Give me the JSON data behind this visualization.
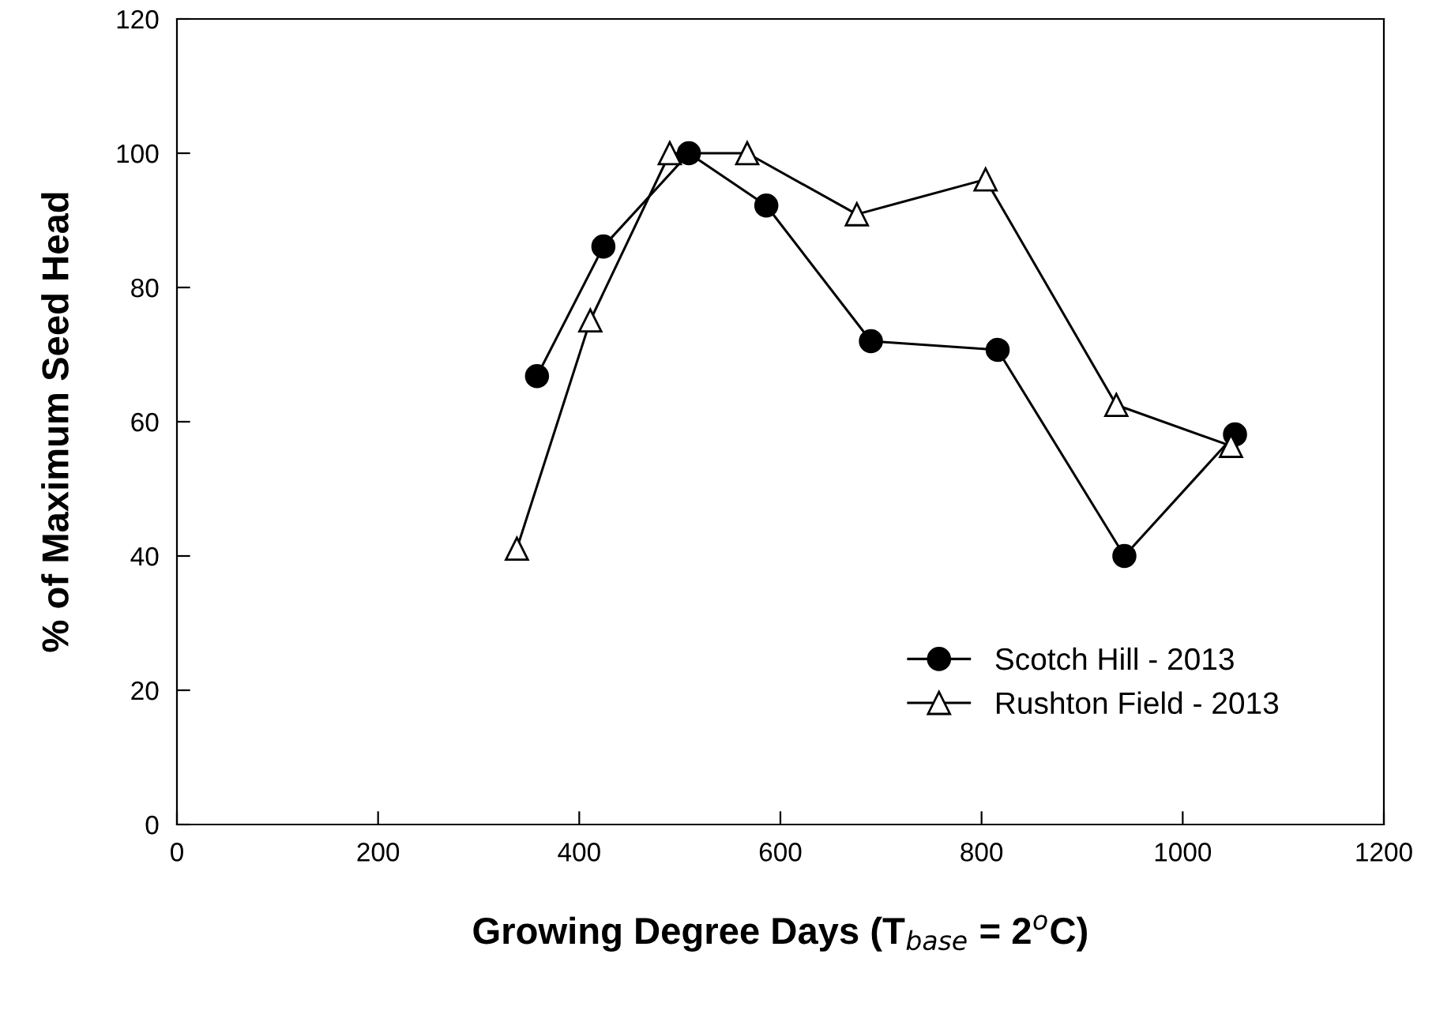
{
  "chart_data": {
    "type": "line",
    "xlabel": "Growing Degree Days (T$_{base}$ = 2$^{o}$C)",
    "ylabel": "% of Maximum Seed Head",
    "xlim": [
      0,
      1200
    ],
    "xticks": [
      0,
      200,
      400,
      600,
      800,
      1000,
      1200
    ],
    "ylim": [
      0,
      120
    ],
    "yticks": [
      0,
      20,
      40,
      60,
      80,
      100,
      120
    ],
    "grid": false,
    "legend": "bottom right",
    "series": [
      {
        "name": "Scotch Hill - 2013",
        "color": "#000000",
        "marker": "circle",
        "x": [
          358,
          424,
          509,
          586,
          690,
          816,
          942,
          1052
        ],
        "values": [
          66.8,
          86.1,
          100,
          92.2,
          72.0,
          70.7,
          40,
          58.1
        ]
      },
      {
        "name": "Rushton Field - 2013",
        "color": "#000000",
        "marker": "triangle",
        "x": [
          338,
          411,
          490,
          567,
          676,
          804,
          934,
          1048
        ],
        "values": [
          41.1,
          75.1,
          100,
          100,
          90.9,
          96.1,
          62.5,
          56.4
        ]
      }
    ]
  }
}
